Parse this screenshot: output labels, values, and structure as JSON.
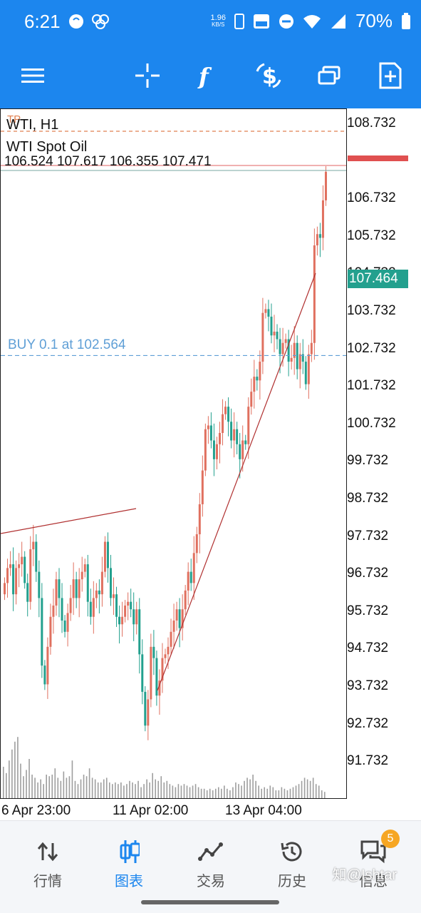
{
  "status_bar": {
    "time": "6:21",
    "net_speed_value": "1.96",
    "net_speed_unit": "KB/S",
    "battery": "70%",
    "icons": [
      "face-icon",
      "cluster-icon",
      "phone-icon",
      "volte-icon",
      "dnd-icon",
      "wifi-icon",
      "signal-4g-icon",
      "battery-icon"
    ]
  },
  "toolbar": {
    "icons": [
      "menu-icon",
      "crosshair-icon",
      "indicator-f-icon",
      "dollar-arrows-icon",
      "windows-icon",
      "new-page-icon"
    ]
  },
  "chart": {
    "symbol_timeframe": "WTI, H1",
    "tp_label": "TP",
    "instrument": "WTI Spot Oil",
    "ohlc": "106.524 107.617 106.355 107.471",
    "order_label": "BUY 0.1 at 102.564",
    "current_price": "107.464",
    "colors": {
      "bull": "#e0705f",
      "bear": "#23a08e",
      "order_line": "#5f9fd6",
      "tp_line": "#e08050",
      "trend": "#b03030"
    }
  },
  "chart_data": {
    "type": "candlestick",
    "price_ticks": [
      "108.732",
      "106.732",
      "105.732",
      "104.732",
      "103.732",
      "102.732",
      "101.732",
      "100.732",
      "99.732",
      "98.732",
      "97.732",
      "96.732",
      "95.732",
      "94.732",
      "93.732",
      "92.732",
      "91.732"
    ],
    "time_ticks": [
      "6 Apr 23:00",
      "11 Apr 02:00",
      "13 Apr 04:00"
    ],
    "tp_price": 108.5,
    "order_price": 102.564,
    "last_price": 107.464,
    "closes": [
      96.5,
      96.9,
      97.0,
      96.2,
      96.9,
      97.0,
      97.2,
      96.5,
      96.0,
      97.4,
      97.6,
      96.8,
      96.1,
      94.3,
      93.8,
      94.8,
      95.6,
      95.9,
      96.6,
      96.1,
      95.5,
      95.2,
      95.7,
      96.1,
      96.6,
      96.1,
      96.6,
      96.8,
      97.0,
      96.0,
      95.6,
      96.1,
      96.3,
      96.2,
      96.8,
      97.6,
      96.9,
      96.1,
      96.2,
      95.6,
      95.4,
      95.6,
      95.9,
      96.0,
      95.8,
      95.4,
      95.8,
      94.6,
      93.6,
      92.7,
      93.4,
      94.8,
      94.5,
      93.5,
      93.9,
      94.5,
      94.6,
      94.8,
      95.2,
      95.5,
      95.8,
      95.3,
      95.8,
      96.3,
      96.8,
      96.5,
      97.3,
      97.8,
      98.6,
      99.5,
      100.6,
      100.7,
      100.3,
      99.8,
      100.2,
      100.5,
      101.0,
      101.2,
      100.8,
      100.3,
      100.6,
      100.2,
      99.8,
      100.3,
      100.2,
      101.2,
      101.6,
      102.0,
      101.9,
      102.4,
      103.7,
      103.8,
      103.6,
      103.1,
      103.2,
      103.0,
      102.6,
      102.9,
      103.0,
      102.4,
      102.5,
      102.9,
      102.2,
      102.6,
      102.4,
      101.8,
      102.6,
      102.9,
      105.5,
      105.8,
      105.7,
      106.7,
      107.46
    ],
    "volumes": [
      40,
      32,
      48,
      62,
      72,
      78,
      44,
      28,
      36,
      50,
      30,
      26,
      20,
      24,
      18,
      30,
      28,
      30,
      38,
      26,
      22,
      34,
      26,
      28,
      48,
      22,
      18,
      24,
      30,
      28,
      38,
      26,
      24,
      20,
      20,
      24,
      26,
      20,
      18,
      20,
      18,
      20,
      16,
      18,
      22,
      20,
      18,
      22,
      14,
      18,
      24,
      20,
      32,
      24,
      22,
      28,
      20,
      22,
      18,
      16,
      14,
      18,
      16,
      18,
      16,
      14,
      16,
      18,
      14,
      12,
      12,
      10,
      12,
      10,
      12,
      14,
      12,
      16,
      12,
      10,
      14,
      20,
      18,
      16,
      22,
      26,
      24,
      30,
      22,
      16,
      12,
      14,
      12,
      16,
      14,
      10,
      10,
      14,
      12,
      10,
      12,
      14,
      16,
      18,
      22,
      26,
      24,
      22,
      26,
      18,
      16,
      10,
      8
    ]
  },
  "nav": {
    "items": [
      {
        "label": "行情",
        "icon": "quotes-arrows-icon"
      },
      {
        "label": "图表",
        "icon": "candles-icon"
      },
      {
        "label": "交易",
        "icon": "trade-line-icon"
      },
      {
        "label": "历史",
        "icon": "history-clock-icon"
      },
      {
        "label": "信息",
        "icon": "messages-icon",
        "badge": "5"
      }
    ]
  },
  "watermark": "知@Ishtar"
}
